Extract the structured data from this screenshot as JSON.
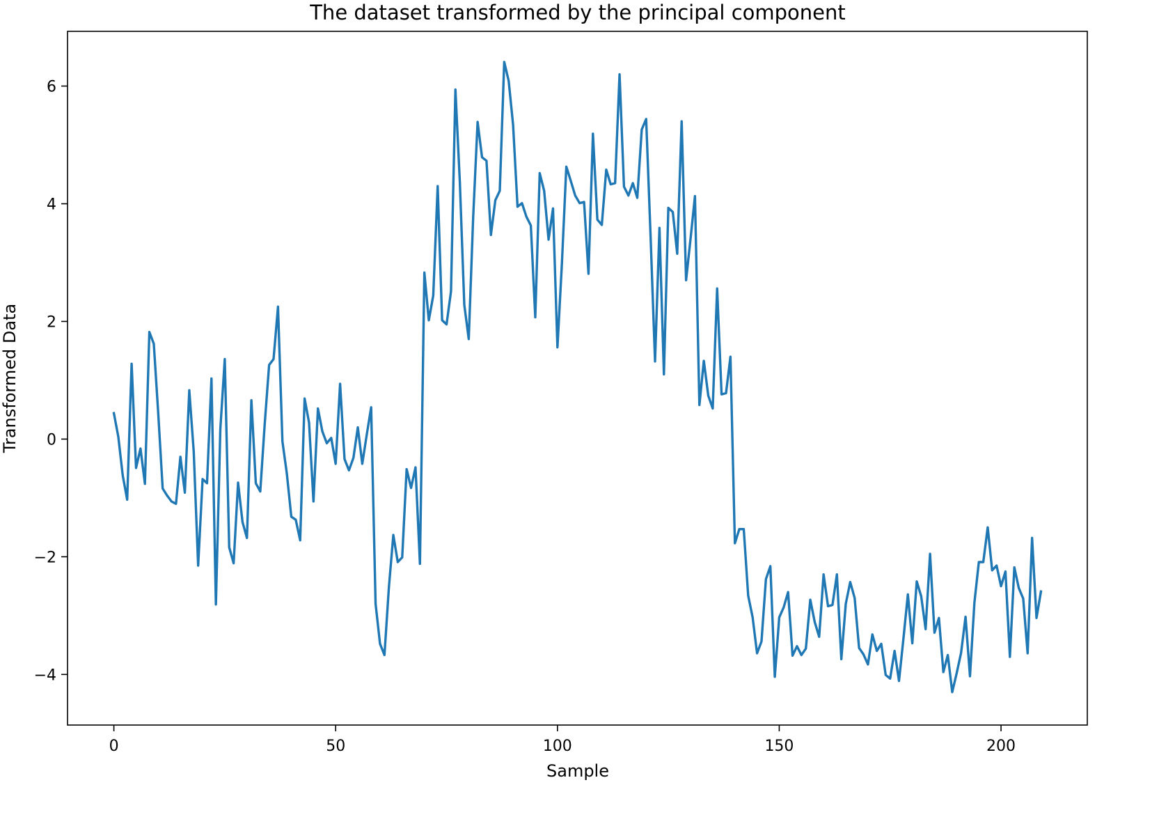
{
  "chart_data": {
    "type": "line",
    "title": "The dataset transformed by the principal component",
    "xlabel": "Sample",
    "ylabel": "Transformed Data",
    "xlim": [
      -10.45,
      219.45
    ],
    "ylim": [
      -4.86,
      6.93
    ],
    "xticks": [
      0,
      50,
      100,
      150,
      200
    ],
    "yticks": [
      -4,
      -2,
      0,
      2,
      4,
      6
    ],
    "xtick_labels": [
      "0",
      "50",
      "100",
      "150",
      "200"
    ],
    "ytick_labels": [
      "−4",
      "−2",
      "0",
      "2",
      "4",
      "6"
    ],
    "grid": false,
    "series": [
      {
        "color": "#1f77b4",
        "y": [
          0.44,
          0.04,
          -0.62,
          -1.03,
          1.28,
          -0.49,
          -0.16,
          -0.76,
          1.82,
          1.62,
          0.44,
          -0.84,
          -0.96,
          -1.06,
          -1.1,
          -0.3,
          -0.91,
          0.83,
          -0.21,
          -2.15,
          -0.68,
          -0.75,
          1.03,
          -2.81,
          0.17,
          1.36,
          -1.84,
          -2.11,
          -0.74,
          -1.41,
          -1.68,
          0.66,
          -0.75,
          -0.89,
          0.25,
          1.26,
          1.36,
          2.25,
          -0.04,
          -0.59,
          -1.32,
          -1.37,
          -1.72,
          0.69,
          0.28,
          -1.06,
          0.52,
          0.13,
          -0.07,
          0.02,
          -0.42,
          0.94,
          -0.34,
          -0.53,
          -0.32,
          0.2,
          -0.42,
          0.07,
          0.54,
          -2.8,
          -3.48,
          -3.67,
          -2.52,
          -1.63,
          -2.09,
          -2.01,
          -0.51,
          -0.83,
          -0.48,
          -2.12,
          2.83,
          2.02,
          2.44,
          4.3,
          2.02,
          1.95,
          2.51,
          5.94,
          4.36,
          2.28,
          1.7,
          3.77,
          5.39,
          4.79,
          4.73,
          3.47,
          4.06,
          4.22,
          6.41,
          6.09,
          5.34,
          3.95,
          4.01,
          3.78,
          3.63,
          2.07,
          4.52,
          4.22,
          3.39,
          3.92,
          1.56,
          2.98,
          4.63,
          4.39,
          4.14,
          4.01,
          4.03,
          2.81,
          5.19,
          3.73,
          3.64,
          4.58,
          4.33,
          4.35,
          6.2,
          4.29,
          4.14,
          4.35,
          4.1,
          5.26,
          5.44,
          3.44,
          1.32,
          3.59,
          1.1,
          3.93,
          3.86,
          3.15,
          5.4,
          2.7,
          3.4,
          4.13,
          0.58,
          1.33,
          0.74,
          0.52,
          2.56,
          0.76,
          0.78,
          1.4,
          -1.77,
          -1.53,
          -1.53,
          -2.66,
          -3.03,
          -3.64,
          -3.44,
          -2.38,
          -2.16,
          -4.04,
          -3.03,
          -2.86,
          -2.6,
          -3.68,
          -3.52,
          -3.67,
          -3.56,
          -2.73,
          -3.11,
          -3.36,
          -2.3,
          -2.84,
          -2.82,
          -2.3,
          -3.74,
          -2.8,
          -2.43,
          -2.7,
          -3.55,
          -3.66,
          -3.83,
          -3.32,
          -3.6,
          -3.48,
          -4.01,
          -4.07,
          -3.6,
          -4.11,
          -3.39,
          -2.64,
          -3.47,
          -2.42,
          -2.67,
          -3.23,
          -1.95,
          -3.29,
          -3.04,
          -3.96,
          -3.67,
          -4.3,
          -3.98,
          -3.63,
          -3.02,
          -4.03,
          -2.78,
          -2.09,
          -2.09,
          -1.5,
          -2.23,
          -2.15,
          -2.5,
          -2.25,
          -3.7,
          -2.18,
          -2.53,
          -2.71,
          -3.64,
          -1.68,
          -3.04,
          -2.59
        ]
      }
    ]
  }
}
